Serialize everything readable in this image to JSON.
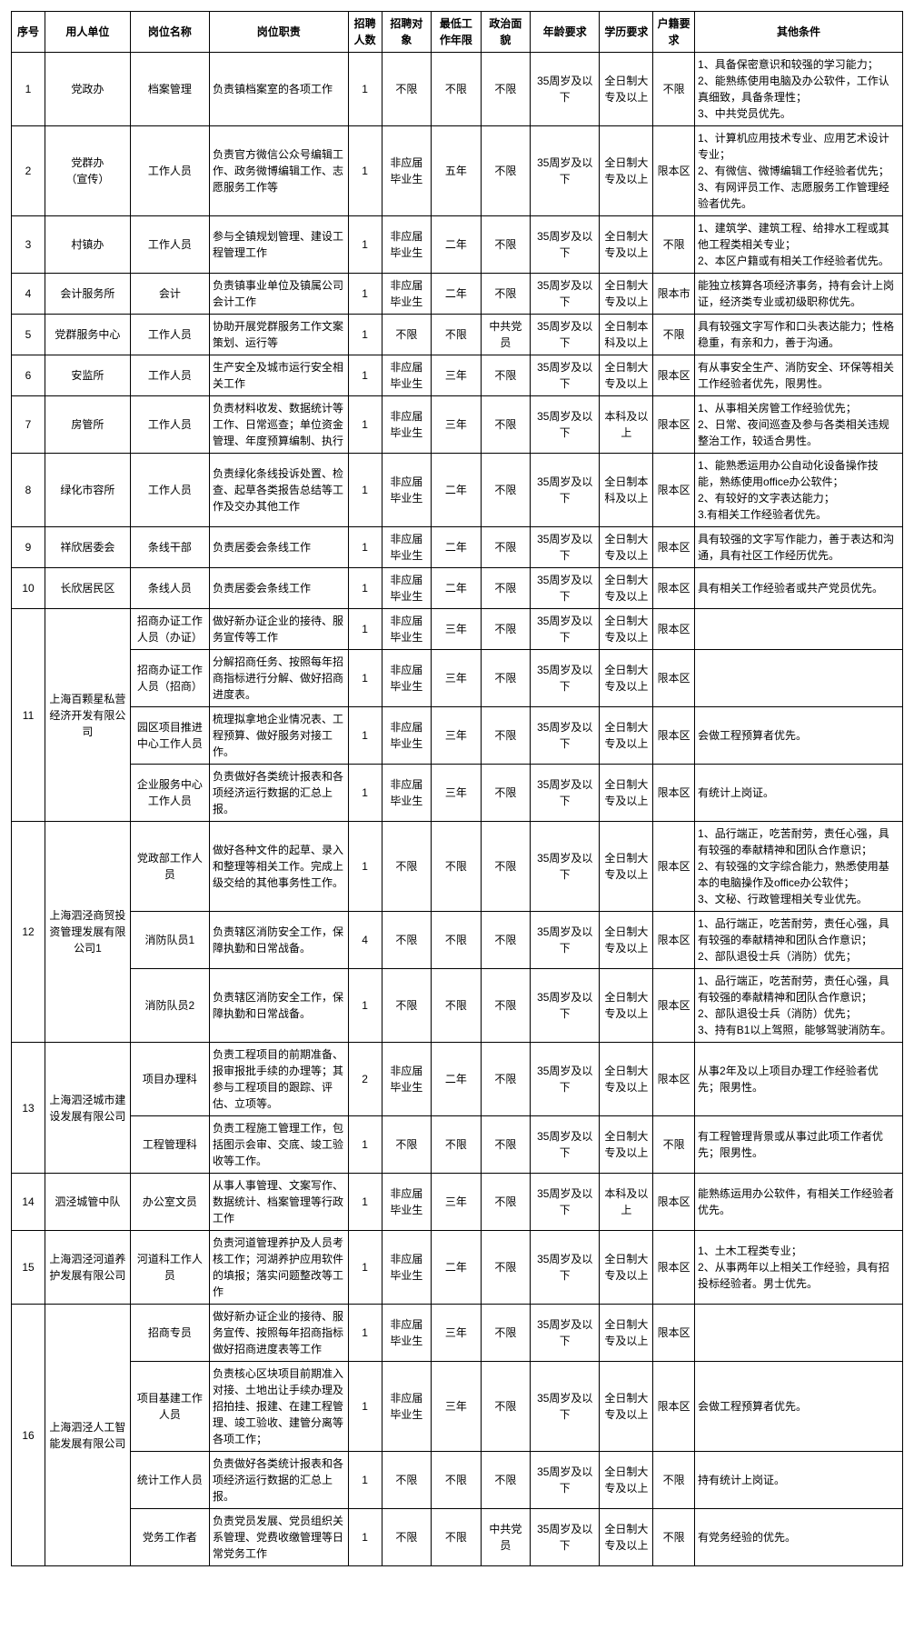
{
  "headers": {
    "seq": "序号",
    "unit": "用人单位",
    "post": "岗位名称",
    "duty": "岗位职责",
    "count": "招聘人数",
    "obj": "招聘对象",
    "year": "最低工作年限",
    "party": "政治面貌",
    "age": "年龄要求",
    "edu": "学历要求",
    "huji": "户籍要求",
    "other": "其他条件"
  },
  "unit_groups": [
    {
      "seq": "1",
      "unit": "党政办",
      "rows": 1
    },
    {
      "seq": "2",
      "unit": "党群办\n（宣传）",
      "rows": 1
    },
    {
      "seq": "3",
      "unit": "村镇办",
      "rows": 1
    },
    {
      "seq": "4",
      "unit": "会计服务所",
      "rows": 1
    },
    {
      "seq": "5",
      "unit": "党群服务中心",
      "rows": 1
    },
    {
      "seq": "6",
      "unit": "安监所",
      "rows": 1
    },
    {
      "seq": "7",
      "unit": "房管所",
      "rows": 1
    },
    {
      "seq": "8",
      "unit": "绿化市容所",
      "rows": 1
    },
    {
      "seq": "9",
      "unit": "祥欣居委会",
      "rows": 1
    },
    {
      "seq": "10",
      "unit": "长欣居民区",
      "rows": 1
    },
    {
      "seq": "11",
      "unit": "上海百颗星私营经济开发有限公司",
      "rows": 4
    },
    {
      "seq": "12",
      "unit": "上海泗泾商贸投资管理发展有限公司1",
      "rows": 3
    },
    {
      "seq": "13",
      "unit": "上海泗泾城市建设发展有限公司",
      "rows": 2
    },
    {
      "seq": "14",
      "unit": "泗泾城管中队",
      "rows": 1
    },
    {
      "seq": "15",
      "unit": "上海泗泾河道养护发展有限公司",
      "rows": 1
    },
    {
      "seq": "16",
      "unit": "上海泗泾人工智能发展有限公司",
      "rows": 4
    }
  ],
  "rows": [
    {
      "group": 0,
      "post": "档案管理",
      "duty": "负责镇档案室的各项工作",
      "count": "1",
      "obj": "不限",
      "year": "不限",
      "party": "不限",
      "age": "35周岁及以下",
      "edu": "全日制大专及以上",
      "huji": "不限",
      "other": "1、具备保密意识和较强的学习能力；\n2、能熟练使用电脑及办公软件，工作认真细致，具备条理性；\n3、中共党员优先。"
    },
    {
      "group": 1,
      "post": "工作人员",
      "duty": "负责官方微信公众号编辑工作、政务微博编辑工作、志愿服务工作等",
      "count": "1",
      "obj": "非应届毕业生",
      "year": "五年",
      "party": "不限",
      "age": "35周岁及以下",
      "edu": "全日制大专及以上",
      "huji": "限本区",
      "other": "1、计算机应用技术专业、应用艺术设计专业；\n2、有微信、微博编辑工作经验者优先；\n3、有网评员工作、志愿服务工作管理经验者优先。"
    },
    {
      "group": 2,
      "post": "工作人员",
      "duty": "参与全镇规划管理、建设工程管理工作",
      "count": "1",
      "obj": "非应届毕业生",
      "year": "二年",
      "party": "不限",
      "age": "35周岁及以下",
      "edu": "全日制大专及以上",
      "huji": "不限",
      "other": "1、建筑学、建筑工程、给排水工程或其他工程类相关专业；\n 2、本区户籍或有相关工作经验者优先。"
    },
    {
      "group": 3,
      "post": "会计",
      "duty": "负责镇事业单位及镇属公司会计工作",
      "count": "1",
      "obj": "非应届毕业生",
      "year": "二年",
      "party": "不限",
      "age": "35周岁及以下",
      "edu": "全日制大专及以上",
      "huji": "限本市",
      "other": "能独立核算各项经济事务，持有会计上岗证，经济类专业或初级职称优先。"
    },
    {
      "group": 4,
      "post": "工作人员",
      "duty": "协助开展党群服务工作文案策划、运行等",
      "count": "1",
      "obj": "不限",
      "year": "不限",
      "party": "中共党员",
      "age": "35周岁及以下",
      "edu": "全日制本科及以上",
      "huji": "不限",
      "other": "具有较强文字写作和口头表达能力；性格稳重，有亲和力，善于沟通。"
    },
    {
      "group": 5,
      "post": "工作人员",
      "duty": "生产安全及城市运行安全相关工作",
      "count": "1",
      "obj": "非应届毕业生",
      "year": "三年",
      "party": "不限",
      "age": "35周岁及以下",
      "edu": "全日制大专及以上",
      "huji": "限本区",
      "other": "有从事安全生产、消防安全、环保等相关工作经验者优先，限男性。"
    },
    {
      "group": 6,
      "post": "工作人员",
      "duty": "负责材料收发、数据统计等工作、日常巡查；单位资金管理、年度预算编制、执行",
      "count": "1",
      "obj": "非应届毕业生",
      "year": "三年",
      "party": "不限",
      "age": "35周岁及以下",
      "edu": "本科及以上",
      "huji": "限本区",
      "other": "1、从事相关房管工作经验优先；\n2、日常、夜间巡查及参与各类相关违规整治工作，较适合男性。"
    },
    {
      "group": 7,
      "post": "工作人员",
      "duty": "负责绿化条线投诉处置、检查、起草各类报告总结等工作及交办其他工作",
      "count": "1",
      "obj": "非应届毕业生",
      "year": "二年",
      "party": "不限",
      "age": "35周岁及以下",
      "edu": "全日制本科及以上",
      "huji": "限本区",
      "other": "1、能熟悉运用办公自动化设备操作技能，熟练使用office办公软件；\n2、有较好的文字表达能力；\n3.有相关工作经验者优先。"
    },
    {
      "group": 8,
      "post": "条线干部",
      "duty": "负责居委会条线工作",
      "count": "1",
      "obj": "非应届毕业生",
      "year": "二年",
      "party": "不限",
      "age": "35周岁及以下",
      "edu": "全日制大专及以上",
      "huji": "限本区",
      "other": "具有较强的文字写作能力，善于表达和沟通，具有社区工作经历优先。"
    },
    {
      "group": 9,
      "post": "条线人员",
      "duty": "负责居委会条线工作",
      "count": "1",
      "obj": "非应届毕业生",
      "year": "二年",
      "party": "不限",
      "age": "35周岁及以下",
      "edu": "全日制大专及以上",
      "huji": "限本区",
      "other": "具有相关工作经验者或共产党员优先。"
    },
    {
      "group": 10,
      "post": "招商办证工作人员（办证）",
      "duty": "做好新办证企业的接待、服务宣传等工作",
      "count": "1",
      "obj": "非应届毕业生",
      "year": "三年",
      "party": "不限",
      "age": "35周岁及以下",
      "edu": "全日制大专及以上",
      "huji": "限本区",
      "other": ""
    },
    {
      "group": 10,
      "post": "招商办证工作人员（招商）",
      "duty": "分解招商任务、按照每年招商指标进行分解、做好招商进度表。",
      "count": "1",
      "obj": "非应届毕业生",
      "year": "三年",
      "party": "不限",
      "age": "35周岁及以下",
      "edu": "全日制大专及以上",
      "huji": "限本区",
      "other": ""
    },
    {
      "group": 10,
      "post": "园区项目推进中心工作人员",
      "duty": "梳理拟拿地企业情况表、工程预算、做好服务对接工作。",
      "count": "1",
      "obj": "非应届毕业生",
      "year": "三年",
      "party": "不限",
      "age": "35周岁及以下",
      "edu": "全日制大专及以上",
      "huji": "限本区",
      "other": "会做工程预算者优先。"
    },
    {
      "group": 10,
      "post": "企业服务中心工作人员",
      "duty": "负责做好各类统计报表和各项经济运行数据的汇总上报。",
      "count": "1",
      "obj": "非应届毕业生",
      "year": "三年",
      "party": "不限",
      "age": "35周岁及以下",
      "edu": "全日制大专及以上",
      "huji": "限本区",
      "other": "有统计上岗证。"
    },
    {
      "group": 11,
      "post": "党政部工作人员",
      "duty": "做好各种文件的起草、录入和整理等相关工作。完成上级交给的其他事务性工作。",
      "count": "1",
      "obj": "不限",
      "year": "不限",
      "party": "不限",
      "age": "35周岁及以下",
      "edu": "全日制大专及以上",
      "huji": "限本区",
      "other": "1、品行端正，吃苦耐劳，责任心强，具有较强的奉献精神和团队合作意识；\n2、有较强的文字综合能力，熟悉使用基本的电脑操作及office办公软件；\n3、文秘、行政管理相关专业优先。"
    },
    {
      "group": 11,
      "post": "消防队员1",
      "duty": "负责辖区消防安全工作，保障执勤和日常战备。",
      "count": "4",
      "obj": "不限",
      "year": "不限",
      "party": "不限",
      "age": "35周岁及以下",
      "edu": "全日制大专及以上",
      "huji": "限本区",
      "other": "1、品行端正，吃苦耐劳，责任心强，具有较强的奉献精神和团队合作意识；\n2、部队退役士兵（消防）优先；"
    },
    {
      "group": 11,
      "post": "消防队员2",
      "duty": "负责辖区消防安全工作，保障执勤和日常战备。",
      "count": "1",
      "obj": "不限",
      "year": "不限",
      "party": "不限",
      "age": "35周岁及以下",
      "edu": "全日制大专及以上",
      "huji": "限本区",
      "other": "1、品行端正，吃苦耐劳，责任心强，具有较强的奉献精神和团队合作意识；\n2、部队退役士兵（消防）优先；\n3、持有B1以上驾照，能够驾驶消防车。"
    },
    {
      "group": 12,
      "post": "项目办理科",
      "duty": "负责工程项目的前期准备、报审报批手续的办理等；其参与工程项目的跟踪、评估、立项等。",
      "count": "2",
      "obj": "非应届毕业生",
      "year": "二年",
      "party": "不限",
      "age": "35周岁及以下",
      "edu": "全日制大专及以上",
      "huji": "限本区",
      "other": "从事2年及以上项目办理工作经验者优先；限男性。"
    },
    {
      "group": 12,
      "post": "工程管理科",
      "duty": "负责工程施工管理工作，包括图示会审、交底、竣工验收等工作。",
      "count": "1",
      "obj": "不限",
      "year": "不限",
      "party": "不限",
      "age": "35周岁及以下",
      "edu": "全日制大专及以上",
      "huji": "不限",
      "other": "有工程管理背景或从事过此项工作者优先；限男性。"
    },
    {
      "group": 13,
      "post": "办公室文员",
      "duty": "从事人事管理、文案写作、数据统计、档案管理等行政工作",
      "count": "1",
      "obj": "非应届毕业生",
      "year": "三年",
      "party": "不限",
      "age": "35周岁及以下",
      "edu": "本科及以上",
      "huji": "限本区",
      "other": "能熟练运用办公软件，有相关工作经验者优先。"
    },
    {
      "group": 14,
      "post": "河道科工作人员",
      "duty": "负责河道管理养护及人员考核工作；河湖养护应用软件的填报；落实问题整改等工作",
      "count": "1",
      "obj": "非应届毕业生",
      "year": "二年",
      "party": "不限",
      "age": "35周岁及以下",
      "edu": "全日制大专及以上",
      "huji": "限本区",
      "other": "1、土木工程类专业；\n2、从事两年以上相关工作经验，具有招投标经验者。男士优先。"
    },
    {
      "group": 15,
      "post": "招商专员",
      "duty": "做好新办证企业的接待、服务宣传、按照每年招商指标做好招商进度表等工作",
      "count": "1",
      "obj": "非应届毕业生",
      "year": "三年",
      "party": "不限",
      "age": "35周岁及以下",
      "edu": "全日制大专及以上",
      "huji": "限本区",
      "other": ""
    },
    {
      "group": 15,
      "post": "项目基建工作人员",
      "duty": "负责核心区块项目前期准入对接、土地出让手续办理及招拍挂、报建、在建工程管理、竣工验收、建管分离等各项工作；",
      "count": "1",
      "obj": "非应届毕业生",
      "year": "三年",
      "party": "不限",
      "age": "35周岁及以下",
      "edu": "全日制大专及以上",
      "huji": "限本区",
      "other": "会做工程预算者优先。"
    },
    {
      "group": 15,
      "post": "统计工作人员",
      "duty": "负责做好各类统计报表和各项经济运行数据的汇总上报。",
      "count": "1",
      "obj": "不限",
      "year": "不限",
      "party": "不限",
      "age": "35周岁及以下",
      "edu": "全日制大专及以上",
      "huji": "不限",
      "other": "持有统计上岗证。"
    },
    {
      "group": 15,
      "post": "党务工作者",
      "duty": "负责党员发展、党员组织关系管理、党费收缴管理等日常党务工作",
      "count": "1",
      "obj": "不限",
      "year": "不限",
      "party": "中共党员",
      "age": "35周岁及以下",
      "edu": "全日制大专及以上",
      "huji": "不限",
      "other": "有党务经验的优先。"
    }
  ]
}
